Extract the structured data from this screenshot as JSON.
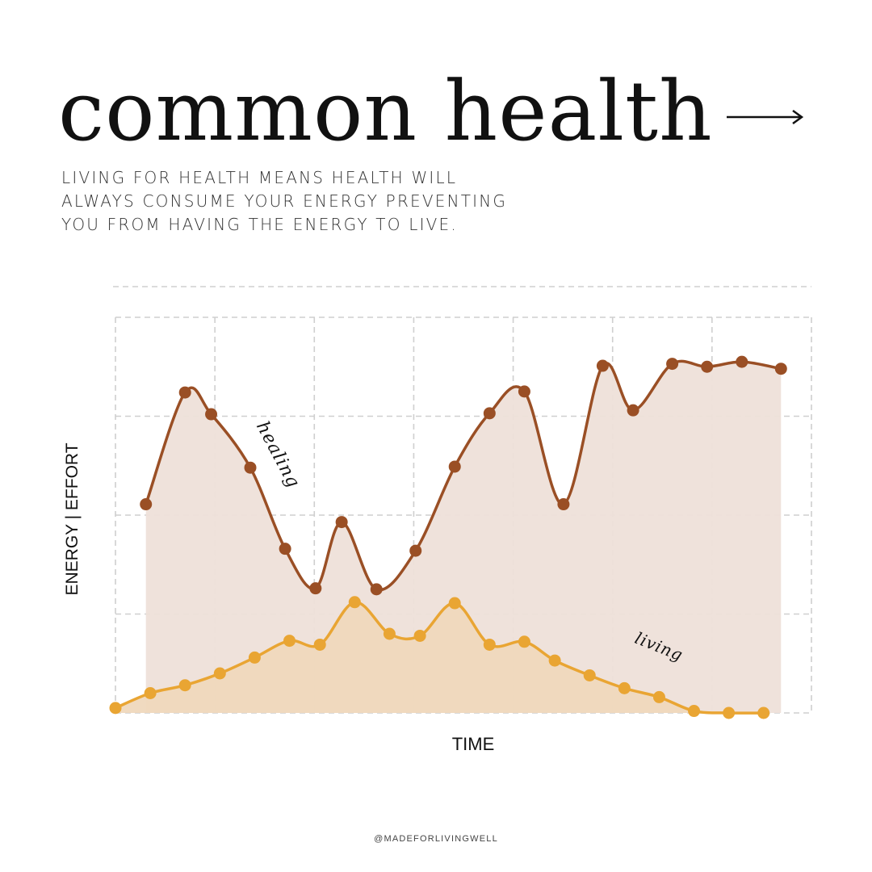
{
  "header": {
    "title": "common health",
    "arrow_icon": "long-right-arrow-icon",
    "subtitle_lines": [
      "LIVING FOR HEALTH MEANS HEALTH WILL",
      "ALWAYS CONSUME YOUR ENERGY PREVENTING",
      "YOU FROM HAVING THE ENERGY TO LIVE."
    ]
  },
  "footer": {
    "handle": "@MADEFORLIVINGWELL"
  },
  "colors": {
    "healing_line": "#9a4f25",
    "healing_fill": "#eee0d9",
    "living_line": "#e9a533",
    "living_fill": "#efd8bd",
    "grid": "#cfcfcf"
  },
  "chart_data": {
    "type": "area",
    "xlabel": "TIME",
    "ylabel": "ENERGY | EFFORT",
    "grid": true,
    "xlim": [
      0,
      16
    ],
    "ylim": [
      0,
      4
    ],
    "series": [
      {
        "name": "healing",
        "x": [
          0.7,
          1.6,
          2.2,
          3.1,
          3.9,
          4.6,
          5.2,
          6.0,
          6.9,
          7.8,
          8.6,
          9.4,
          10.3,
          11.2,
          11.9,
          12.8,
          13.6,
          14.4,
          15.3
        ],
        "values": [
          2.11,
          3.24,
          3.02,
          2.48,
          1.66,
          1.26,
          1.93,
          1.25,
          1.64,
          2.49,
          3.03,
          3.25,
          2.11,
          3.51,
          3.06,
          3.53,
          3.5,
          3.55,
          3.48
        ]
      },
      {
        "name": "living",
        "x": [
          0.0,
          0.8,
          1.6,
          2.4,
          3.2,
          4.0,
          4.7,
          5.5,
          6.3,
          7.0,
          7.8,
          8.6,
          9.4,
          10.1,
          10.9,
          11.7,
          12.5,
          13.3,
          14.1,
          14.9
        ],
        "values": [
          0.05,
          0.2,
          0.28,
          0.4,
          0.56,
          0.73,
          0.69,
          1.12,
          0.8,
          0.78,
          1.11,
          0.69,
          0.72,
          0.53,
          0.38,
          0.25,
          0.16,
          0.02,
          0.0,
          0.0
        ]
      }
    ]
  }
}
